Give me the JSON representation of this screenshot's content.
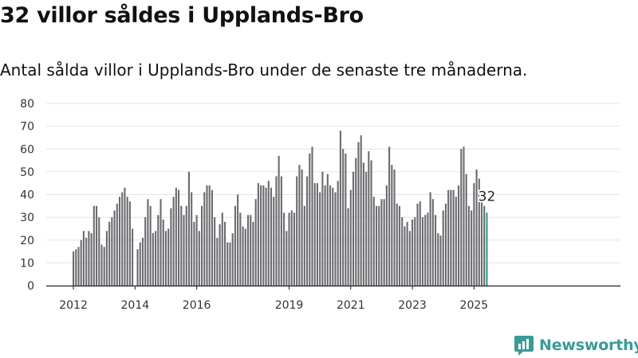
{
  "title": "32 villor såldes i Upplands-Bro",
  "subtitle": "Antal sålda villor i Upplands-Bro under de senaste tre månaderna.",
  "brand": {
    "name": "Newsworthy",
    "icon": "newsworthy-logo-icon"
  },
  "colors": {
    "bar": "#6b6b70",
    "highlight": "#2a9a93",
    "grid": "#e4e4e4",
    "axis": "#222222",
    "brand": "#3a9b96"
  },
  "chart_data": {
    "type": "bar",
    "title": "",
    "xlabel": "",
    "ylabel": "",
    "ylim": [
      0,
      80
    ],
    "yticks": [
      0,
      10,
      20,
      30,
      40,
      50,
      60,
      70,
      80
    ],
    "grid": true,
    "x_start_label": "2012",
    "x_tick_labels": [
      "2012",
      "2014",
      "2016",
      "2019",
      "2021",
      "2023",
      "2025"
    ],
    "highlight_label": "32",
    "values": [
      15,
      16,
      17,
      20,
      24,
      21,
      24,
      23,
      35,
      35,
      30,
      18,
      17,
      24,
      28,
      30,
      33,
      36,
      39,
      41,
      43,
      39,
      37,
      25,
      null,
      16,
      19,
      21,
      30,
      38,
      35,
      23,
      24,
      31,
      38,
      29,
      24,
      25,
      34,
      39,
      43,
      42,
      35,
      31,
      35,
      50,
      41,
      28,
      31,
      24,
      35,
      41,
      44,
      44,
      42,
      30,
      21,
      27,
      32,
      28,
      19,
      19,
      23,
      35,
      40,
      32,
      26,
      25,
      31,
      31,
      28,
      38,
      45,
      44,
      44,
      43,
      46,
      43,
      39,
      48,
      57,
      48,
      32,
      24,
      32,
      33,
      32,
      48,
      53,
      51,
      35,
      48,
      58,
      61,
      45,
      45,
      41,
      50,
      44,
      49,
      44,
      43,
      41,
      46,
      68,
      60,
      58,
      34,
      42,
      50,
      56,
      63,
      66,
      54,
      50,
      59,
      55,
      39,
      35,
      35,
      38,
      38,
      44,
      61,
      53,
      51,
      36,
      35,
      30,
      26,
      28,
      24,
      29,
      30,
      36,
      37,
      30,
      31,
      32,
      41,
      38,
      31,
      23,
      22,
      33,
      36,
      42,
      42,
      42,
      39,
      44,
      60,
      61,
      49,
      35,
      33,
      45,
      51,
      47,
      37,
      35,
      32
    ],
    "last_value": 32
  }
}
